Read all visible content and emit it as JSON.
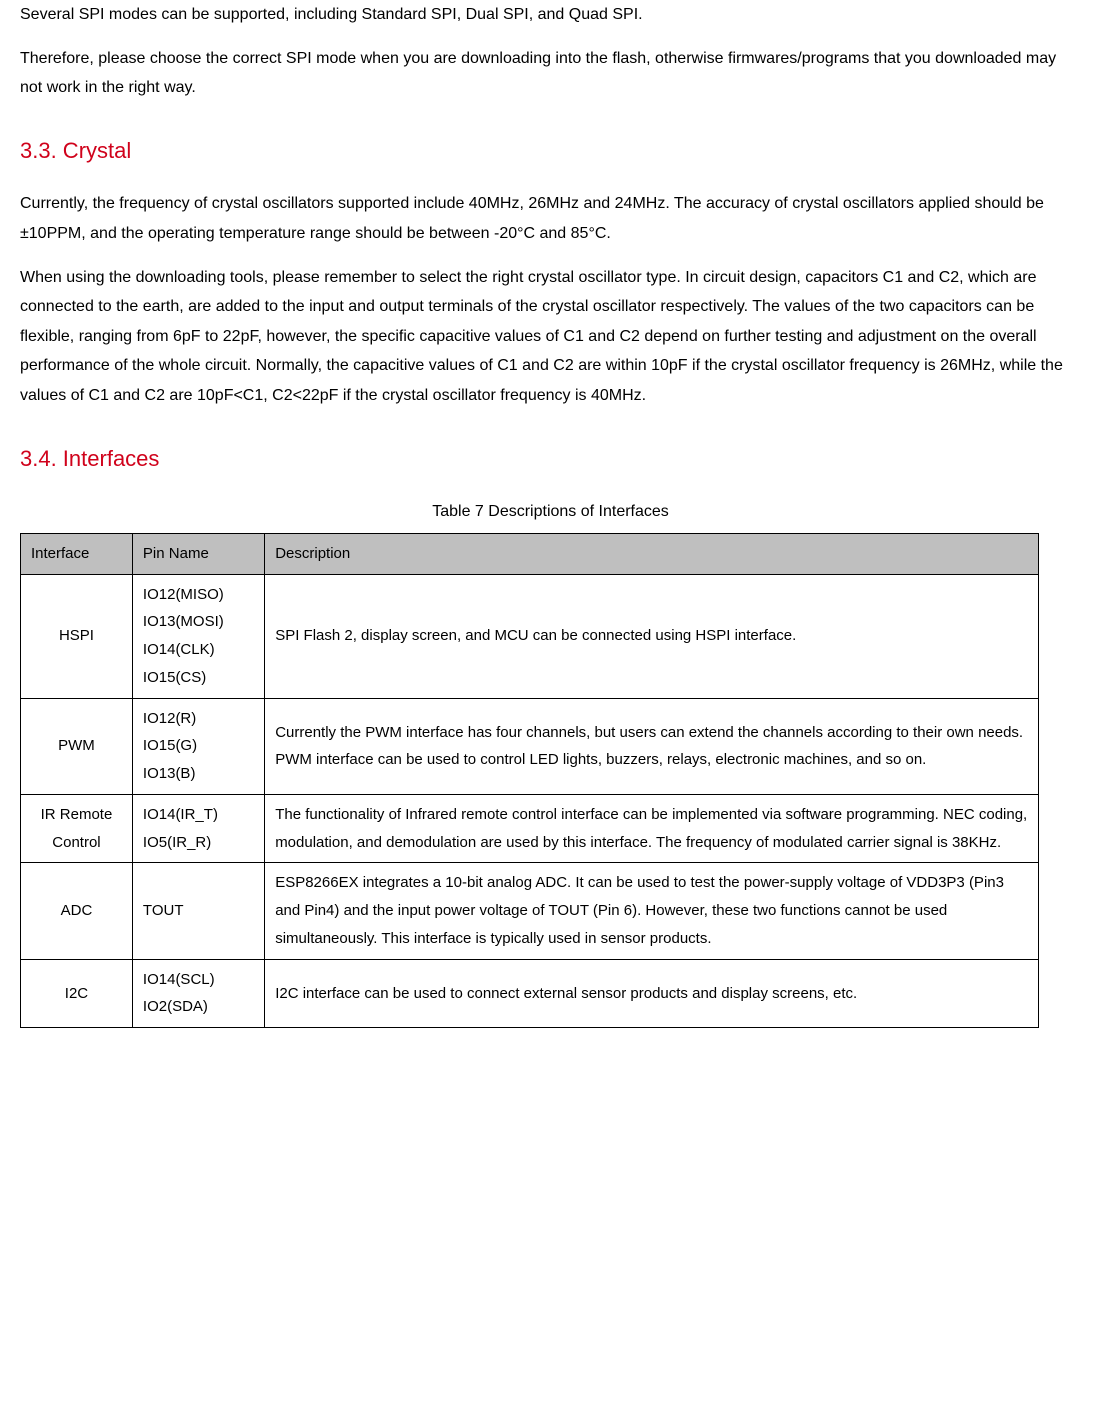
{
  "para1": "Several SPI modes can be supported, including Standard SPI, Dual SPI, and Quad SPI.",
  "para2": "Therefore, please choose the correct SPI mode when you are downloading into the ﬂash, otherwise ﬁrmwares/programs that you downloaded may not work in the right way.",
  "h33": "3.3. Crystal",
  "para3": "Currently, the frequency of crystal oscillators supported include 40MHz, 26MHz and 24MHz. The accuracy of crystal oscillators applied should be ±10PPM, and the operating temperature range should be between -20°C and 85°C.",
  "para4": "When using the downloading tools, please remember to select the right crystal oscillator type. In circuit design, capacitors C1 and C2, which are connected to the earth, are added to the input and output terminals of the crystal oscillator respectively. The values of the two capacitors can be ﬂexible, ranging from 6pF to 22pF, however, the speciﬁc capacitive values of C1 and C2 depend on further testing and adjustment on the overall performance of the whole circuit. Normally, the capacitive values of C1 and C2 are within 10pF if the crystal oscillator frequency is 26MHz, while the values of C1 and C2 are 10pF<C1, C2<22pF if the crystal oscillator frequency is 40MHz.",
  "h34": "3.4. Interfaces",
  "tablecaption": "Table 7 Descriptions of Interfaces",
  "thead": {
    "c1": "Interface",
    "c2": "Pin Name",
    "c3": "Description"
  },
  "rows": [
    {
      "iface": "HSPI",
      "pins": "IO12(MISO)\nIO13(MOSI)\nIO14(CLK)\nIO15(CS)",
      "desc": "SPI Flash 2, display screen, and MCU can be connected using HSPI interface."
    },
    {
      "iface": "PWM",
      "pins": "IO12(R)\nIO15(G)\nIO13(B)",
      "desc": "Currently the PWM interface has four channels, but users can extend the channels according to their own needs. PWM interface can be used to control LED lights, buzzers, relays, electronic machines, and so on."
    },
    {
      "iface": "IR Remote Control",
      "pins": "IO14(IR_T)\nIO5(IR_R)",
      "desc": "The functionality of Infrared remote control interface can be implemented via software programming. NEC coding, modulation, and demodulation are used by this interface. The frequency of modulated carrier signal is 38KHz."
    },
    {
      "iface": "ADC",
      "pins": "TOUT",
      "desc": "ESP8266EX integrates a 10-bit analog ADC. It can be used to test the power-supply voltage of VDD3P3 (Pin3 and Pin4) and the input power voltage of TOUT (Pin 6). However, these two functions cannot be used simultaneously. This interface is typically used in sensor products."
    },
    {
      "iface": "I2C",
      "pins": "IO14(SCL)\nIO2(SDA)",
      "desc": "I2C interface can be used to connect external sensor products and display screens, etc."
    }
  ]
}
